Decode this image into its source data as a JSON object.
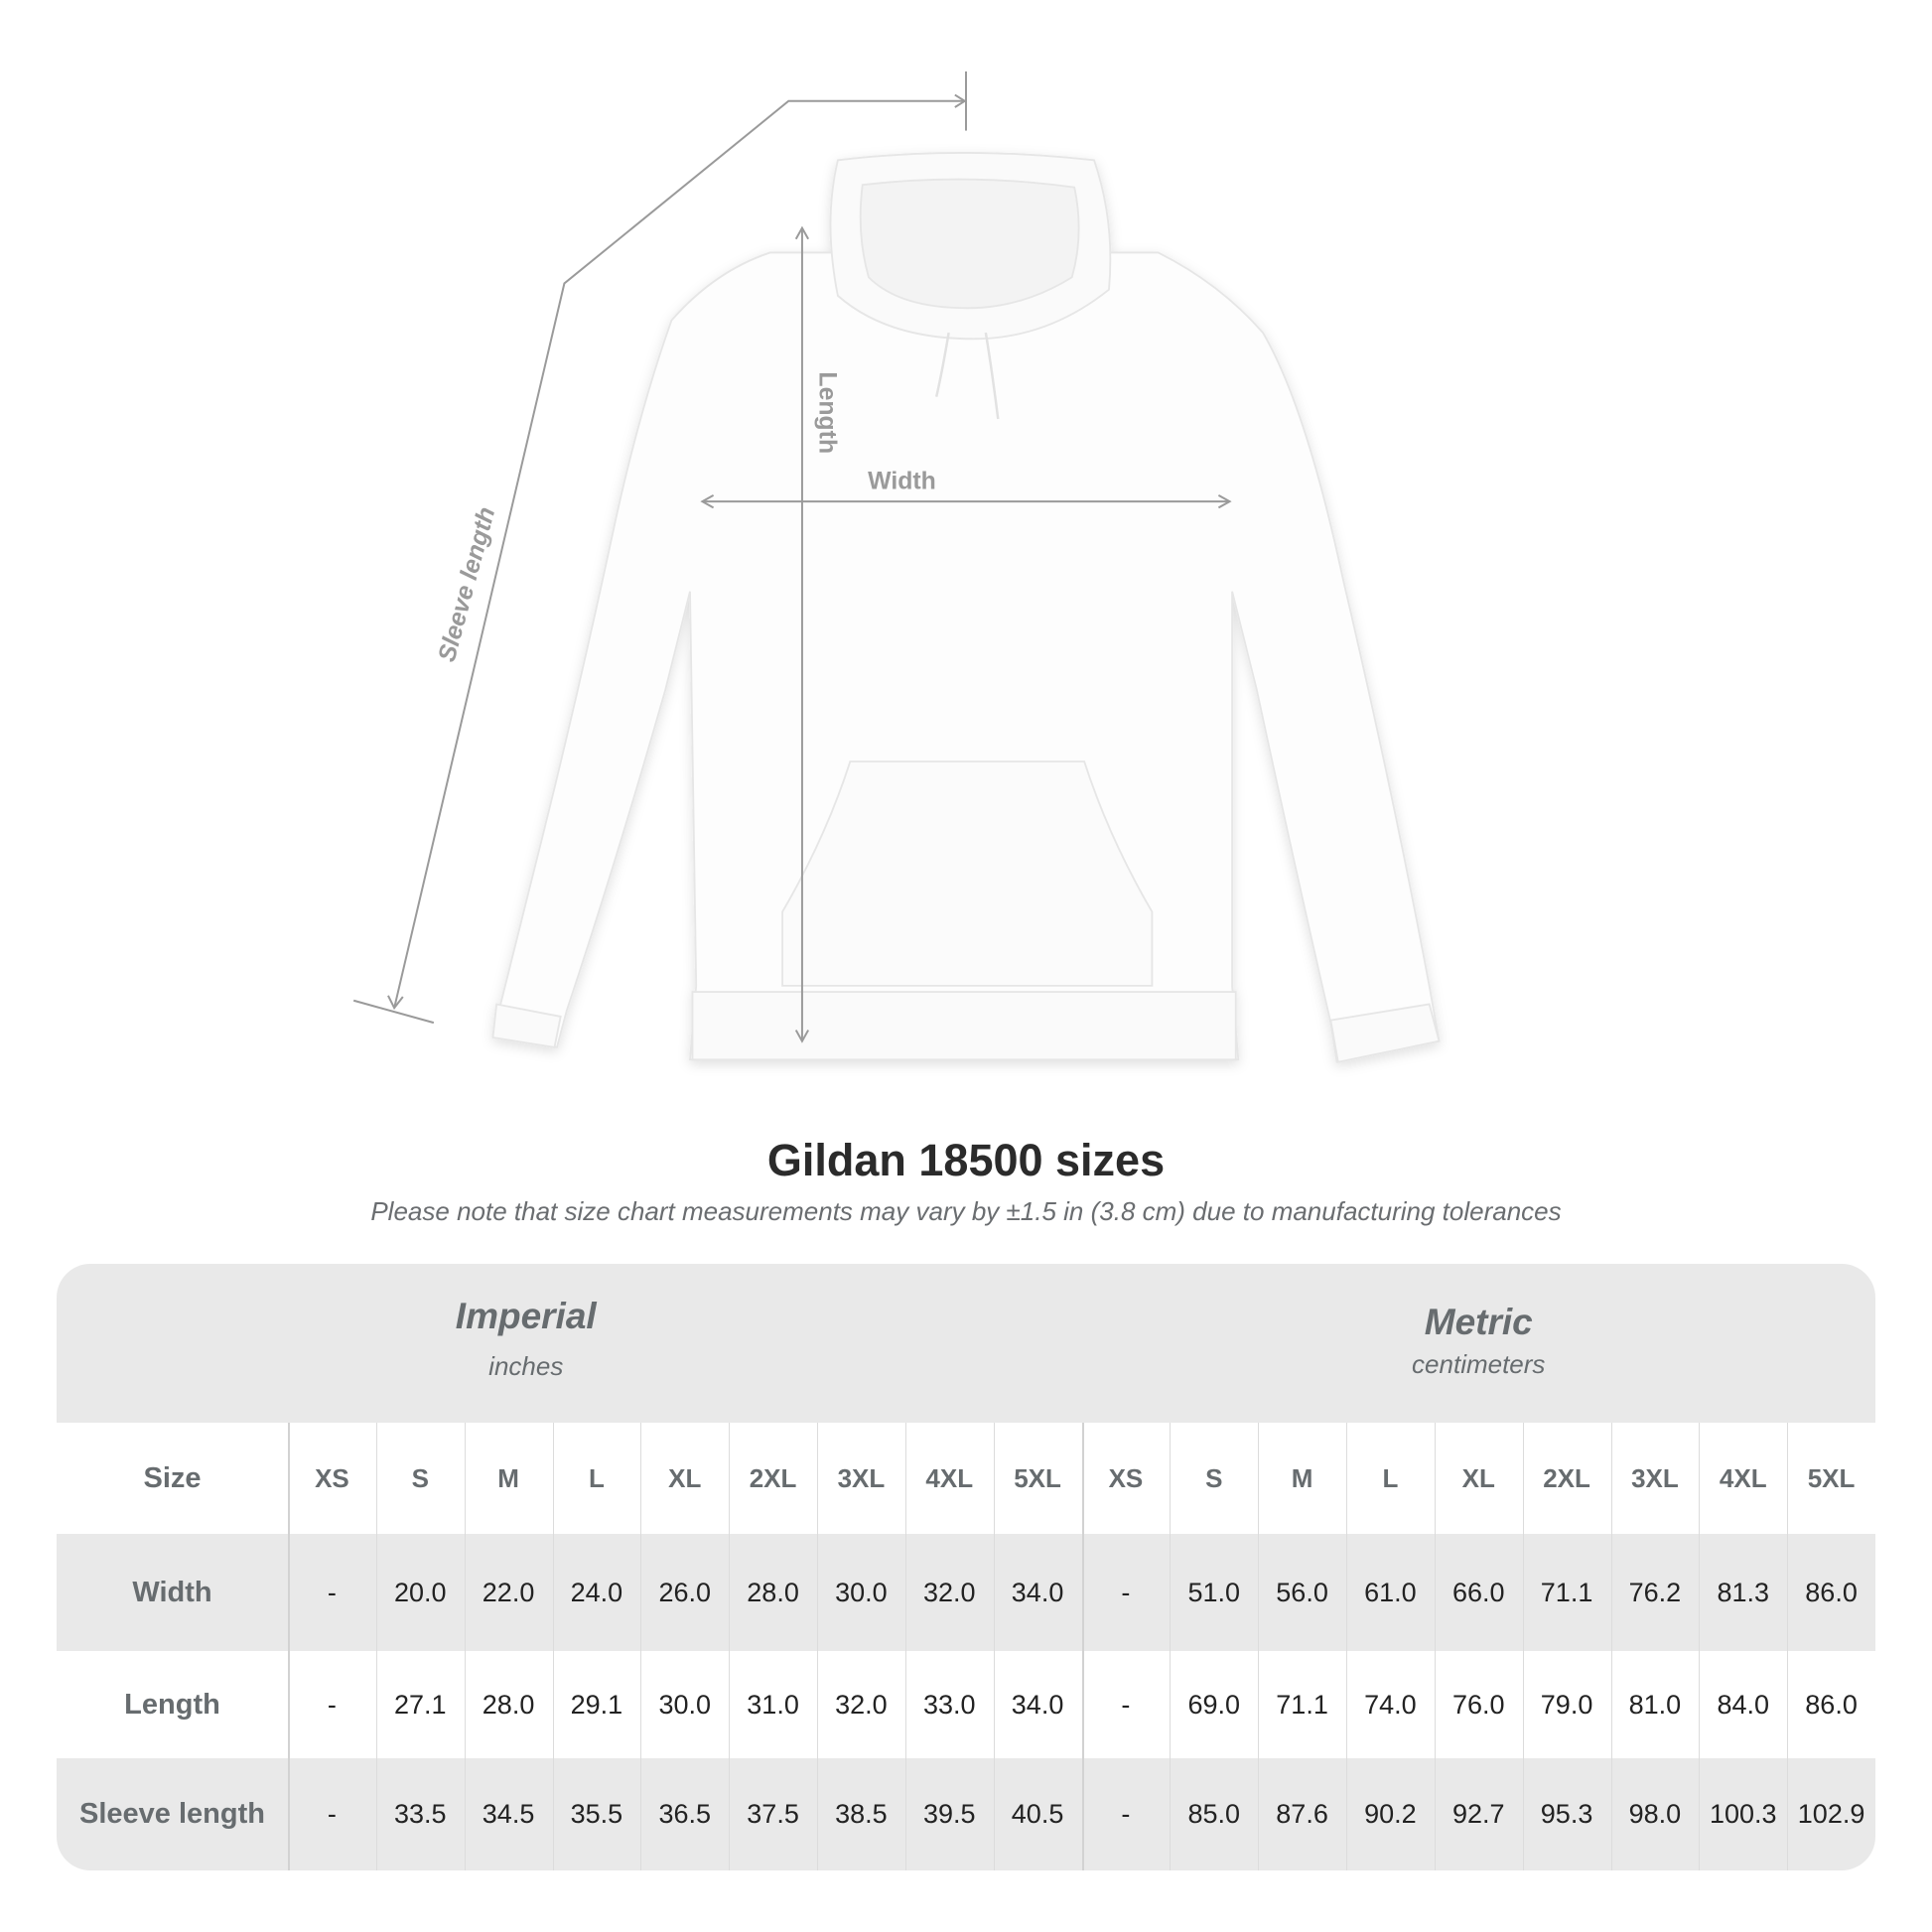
{
  "diagram": {
    "labels": {
      "sleeve": "Sleeve length",
      "length": "Length",
      "width": "Width"
    },
    "line_color": "#9a9a9a"
  },
  "title": "Gildan 18500 sizes",
  "note": "Please note that size chart measurements may vary by ±1.5 in (3.8 cm) due to manufacturing tolerances",
  "table": {
    "groups": [
      {
        "name": "Imperial",
        "unit": "inches"
      },
      {
        "name": "Metric",
        "unit": "centimeters"
      }
    ],
    "size_label": "Size",
    "sizes": [
      "XS",
      "S",
      "M",
      "L",
      "XL",
      "2XL",
      "3XL",
      "4XL",
      "5XL"
    ],
    "rows": [
      {
        "label": "Width",
        "imperial": [
          "-",
          "20.0",
          "22.0",
          "24.0",
          "26.0",
          "28.0",
          "30.0",
          "32.0",
          "34.0"
        ],
        "metric": [
          "-",
          "51.0",
          "56.0",
          "61.0",
          "66.0",
          "71.1",
          "76.2",
          "81.3",
          "86.0"
        ]
      },
      {
        "label": "Length",
        "imperial": [
          "-",
          "27.1",
          "28.0",
          "29.1",
          "30.0",
          "31.0",
          "32.0",
          "33.0",
          "34.0"
        ],
        "metric": [
          "-",
          "69.0",
          "71.1",
          "74.0",
          "76.0",
          "79.0",
          "81.0",
          "84.0",
          "86.0"
        ]
      },
      {
        "label": "Sleeve length",
        "imperial": [
          "-",
          "33.5",
          "34.5",
          "35.5",
          "36.5",
          "37.5",
          "38.5",
          "39.5",
          "40.5"
        ],
        "metric": [
          "-",
          "85.0",
          "87.6",
          "90.2",
          "92.7",
          "95.3",
          "98.0",
          "100.3",
          "102.9"
        ]
      }
    ],
    "colors": {
      "shaded": "#e9e9e9",
      "plain": "#ffffff"
    }
  }
}
